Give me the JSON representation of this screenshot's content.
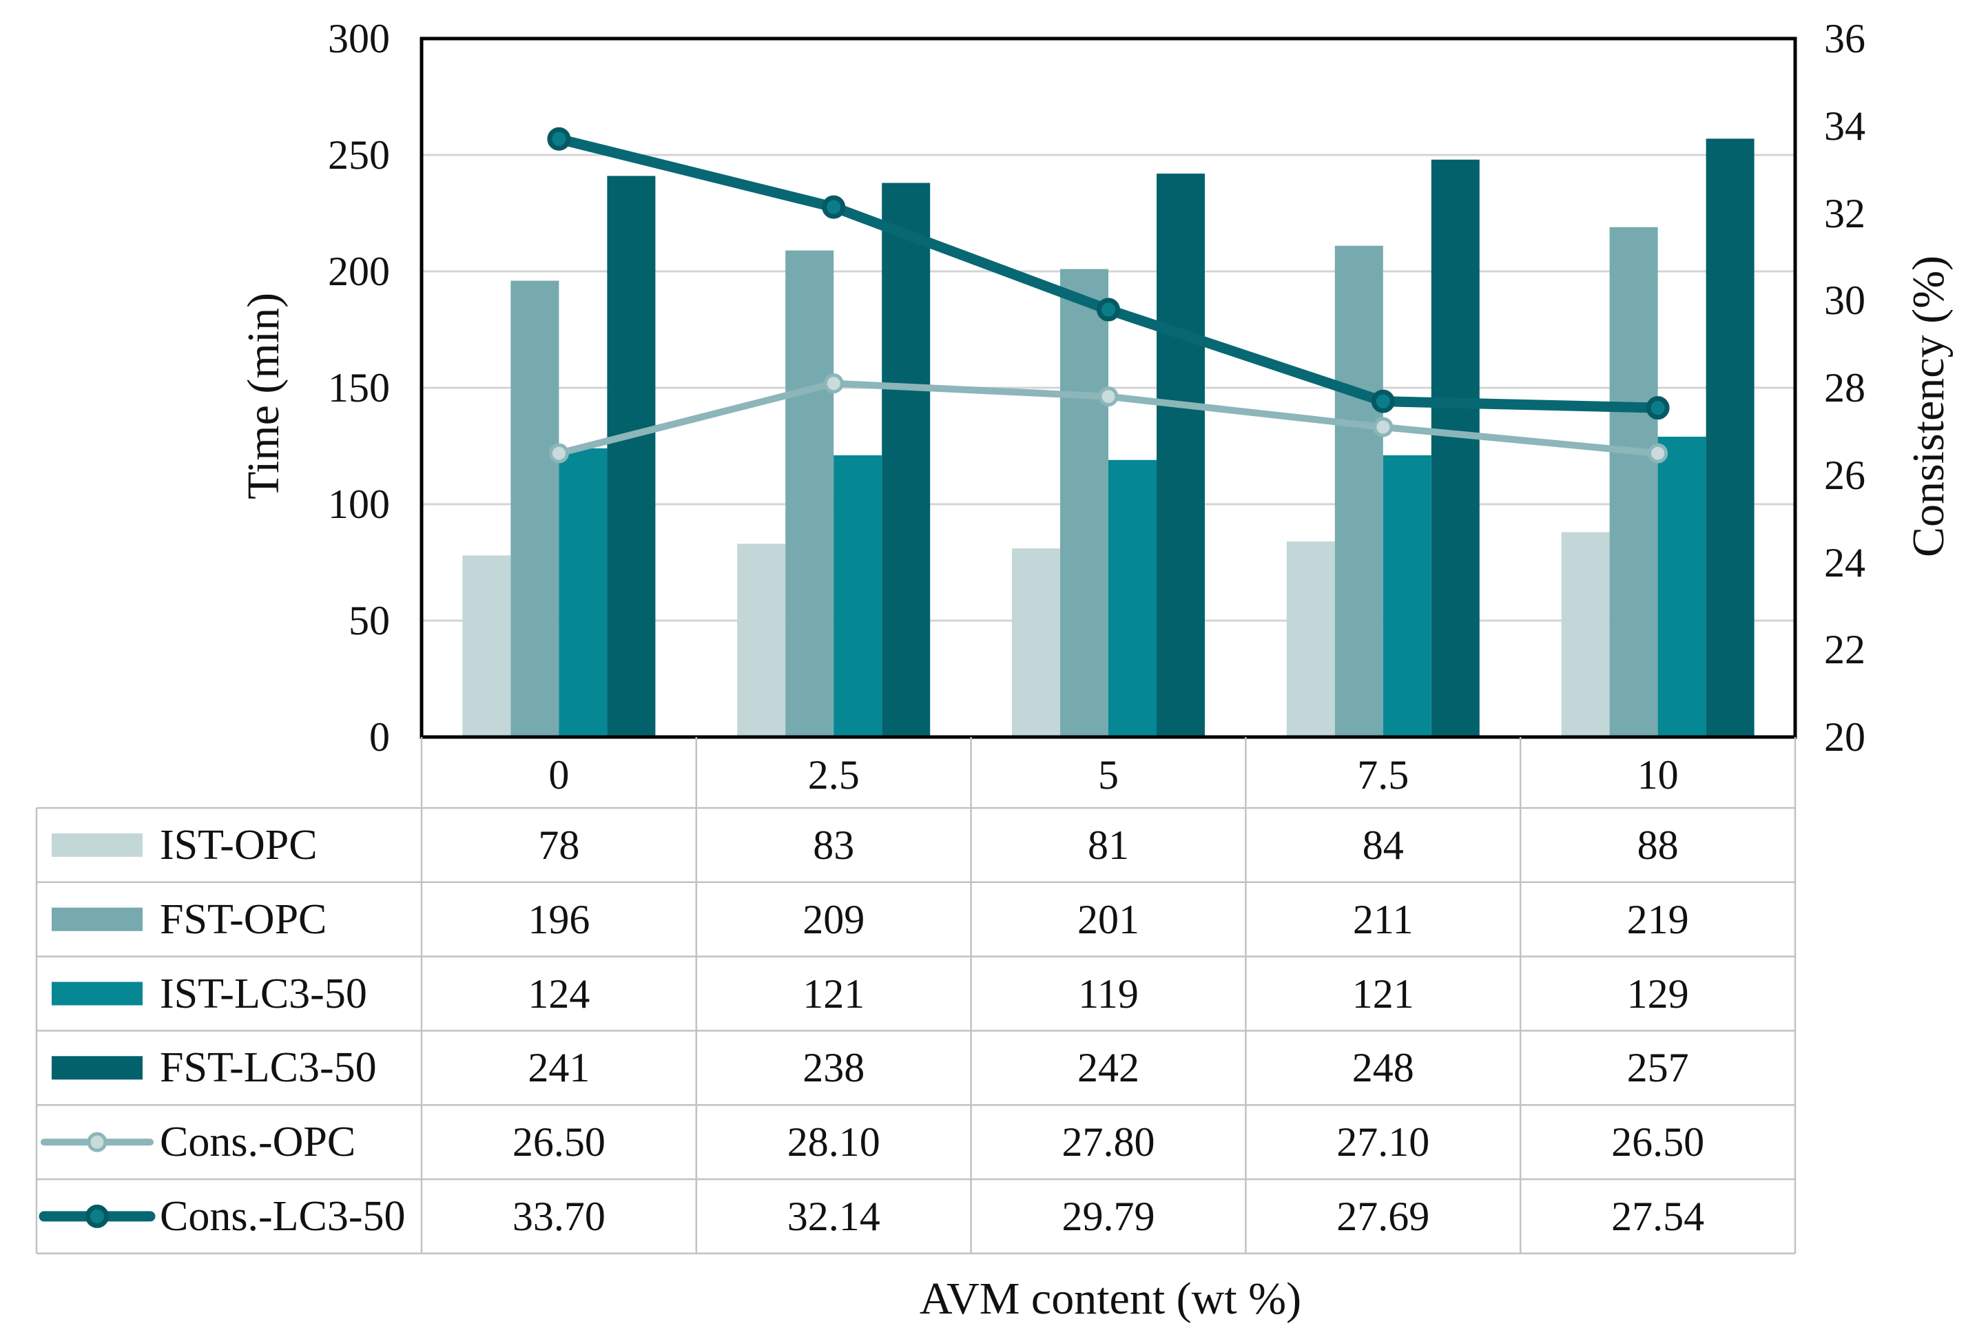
{
  "figure": {
    "background": "#ffffff",
    "text_color": "#111111"
  },
  "chart_data": {
    "type": "bar+line combo, dual axis, with data table legend",
    "categories": [
      "0",
      "2.5",
      "5",
      "7.5",
      "10"
    ],
    "x_axis": {
      "title": "AVM content (wt %)"
    },
    "left_axis": {
      "title": "Time (min)",
      "min": 0,
      "max": 300,
      "step": 50,
      "ticks": [
        "0",
        "50",
        "100",
        "150",
        "200",
        "250",
        "300"
      ]
    },
    "right_axis": {
      "title": "Consistency (%)",
      "min": 20,
      "max": 36,
      "step": 2,
      "ticks": [
        "20",
        "22",
        "24",
        "26",
        "28",
        "30",
        "32",
        "34",
        "36"
      ]
    },
    "grid": true,
    "legend_position": "left column of data table below plot",
    "bar_series": [
      {
        "name": "IST-OPC",
        "color": "#c3d7d8",
        "values": [
          78,
          83,
          81,
          84,
          88
        ],
        "labels": [
          "78",
          "83",
          "81",
          "84",
          "88"
        ]
      },
      {
        "name": "FST-OPC",
        "color": "#76aaae",
        "values": [
          196,
          209,
          201,
          211,
          219
        ],
        "labels": [
          "196",
          "209",
          "201",
          "211",
          "219"
        ]
      },
      {
        "name": "IST-LC3-50",
        "color": "#058794",
        "values": [
          124,
          121,
          119,
          121,
          129
        ],
        "labels": [
          "124",
          "121",
          "119",
          "121",
          "129"
        ]
      },
      {
        "name": "FST-LC3-50",
        "color": "#03616b",
        "values": [
          241,
          238,
          242,
          248,
          257
        ],
        "labels": [
          "241",
          "238",
          "242",
          "248",
          "257"
        ]
      }
    ],
    "line_series": [
      {
        "name": "Cons.-OPC",
        "line_color": "#8cb6b9",
        "marker_fill": "#c9dbdc",
        "marker_stroke": "#8cb6b9",
        "line_width": 10,
        "values": [
          26.5,
          28.1,
          27.8,
          27.1,
          26.5
        ],
        "labels": [
          "26.50",
          "28.10",
          "27.80",
          "27.10",
          "26.50"
        ]
      },
      {
        "name": "Cons.-LC3-50",
        "line_color": "#076873",
        "marker_fill": "#0b7d89",
        "marker_stroke": "#045a64",
        "line_width": 15,
        "values": [
          33.7,
          32.14,
          29.79,
          27.69,
          27.54
        ],
        "labels": [
          "33.70",
          "32.14",
          "29.79",
          "27.69",
          "27.54"
        ]
      }
    ],
    "style": {
      "gridline_color": "#d4d4d4",
      "plot_border_color": "#000000",
      "table_border_color": "#c2c2c2"
    }
  }
}
